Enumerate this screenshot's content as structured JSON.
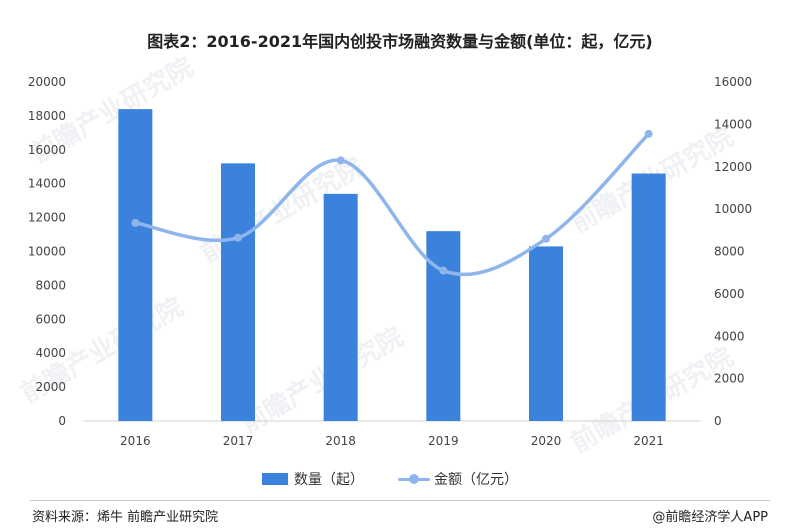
{
  "chart_data": {
    "type": "bar+line",
    "title": "图表2：2016-2021年国内创投市场融资数量与金额(单位：起，亿元)",
    "categories": [
      "2016",
      "2017",
      "2018",
      "2019",
      "2020",
      "2021"
    ],
    "series": [
      {
        "name": "数量（起）",
        "type": "bar",
        "axis": "left",
        "color": "#3b82dc",
        "values": [
          18400,
          15200,
          13400,
          11200,
          10300,
          14600
        ]
      },
      {
        "name": "金额（亿元）",
        "type": "line",
        "axis": "right",
        "color": "#8fb6ec",
        "values": [
          9350,
          8650,
          12300,
          7100,
          8600,
          13550
        ]
      }
    ],
    "y_left": {
      "min": 0,
      "max": 20000,
      "step": 2000,
      "ticks": [
        "0",
        "2000",
        "4000",
        "6000",
        "8000",
        "10000",
        "12000",
        "14000",
        "16000",
        "18000",
        "20000"
      ]
    },
    "y_right": {
      "min": 0,
      "max": 16000,
      "step": 2000,
      "ticks": [
        "0",
        "2000",
        "4000",
        "6000",
        "8000",
        "10000",
        "12000",
        "14000",
        "16000"
      ]
    },
    "grid": false,
    "legend_position": "bottom-center"
  },
  "footer": {
    "source": "资料来源：烯牛 前瞻产业研究院",
    "credit": "@前瞻经济学人APP"
  },
  "watermark": {
    "text": "前瞻产业研究院"
  }
}
